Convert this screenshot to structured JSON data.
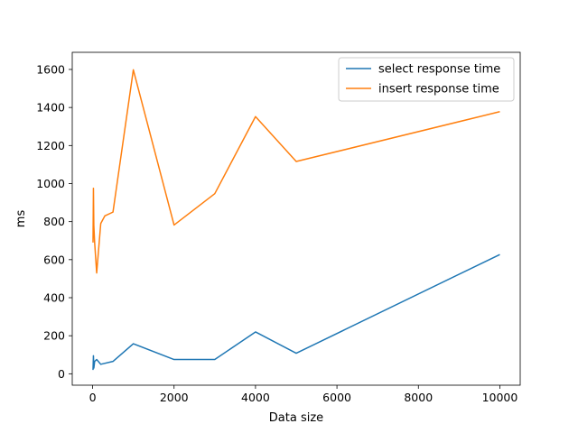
{
  "chart_data": {
    "type": "line",
    "title": "",
    "xlabel": "Data size",
    "ylabel": "ms",
    "xlim": [
      -500,
      10500
    ],
    "ylim": [
      -60,
      1690
    ],
    "xticks": [
      0,
      2000,
      4000,
      6000,
      8000,
      10000
    ],
    "yticks": [
      0,
      200,
      400,
      600,
      800,
      1000,
      1200,
      1400,
      1600
    ],
    "grid": false,
    "legend_position": "top-right",
    "series": [
      {
        "name": "select response time",
        "color": "#1f77b4",
        "x": [
          10,
          20,
          30,
          50,
          100,
          200,
          500,
          1000,
          2000,
          3000,
          4000,
          5000,
          10000
        ],
        "y": [
          20,
          95,
          30,
          65,
          75,
          50,
          65,
          158,
          75,
          75,
          220,
          108,
          627
        ]
      },
      {
        "name": "insert response time",
        "color": "#ff7f0e",
        "x": [
          10,
          20,
          30,
          50,
          100,
          200,
          300,
          500,
          1000,
          2000,
          3000,
          4000,
          5000,
          10000
        ],
        "y": [
          690,
          975,
          780,
          690,
          530,
          790,
          830,
          850,
          1598,
          782,
          947,
          1352,
          1116,
          1378
        ]
      }
    ]
  }
}
